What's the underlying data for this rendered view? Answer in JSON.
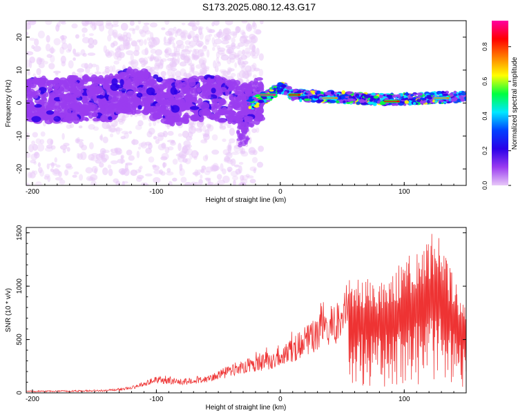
{
  "title": "S173.2025.080.12.43.G17",
  "chart_data": [
    {
      "type": "heatmap",
      "title": "S173.2025.080.12.43.G17",
      "xlabel": "Height of straight line (km)",
      "ylabel": "Frequency (Hz)",
      "xlim": [
        -205,
        150
      ],
      "ylim": [
        -25,
        25
      ],
      "xticks": [
        "-200",
        "-100",
        "0",
        "100"
      ],
      "yticks": [
        "20",
        "10",
        "0",
        "-10",
        "-20"
      ],
      "colorbar": {
        "label": "Normalized spectral amplitude",
        "range": [
          0,
          0.95
        ],
        "ticks": [
          "0.0",
          "0.2",
          "0.4",
          "0.6",
          "0.8"
        ],
        "colors": [
          "#e8c8f8",
          "#9a3cf0",
          "#2a00e8",
          "#0040ff",
          "#00e8ff",
          "#00ff40",
          "#ffff00",
          "#ff8000",
          "#ff0000",
          "#ff00a0"
        ]
      },
      "ridge": [
        {
          "x": -200,
          "y": 1
        },
        {
          "x": -180,
          "y": 0.5
        },
        {
          "x": -160,
          "y": 1.5
        },
        {
          "x": -140,
          "y": 1
        },
        {
          "x": -125,
          "y": 4
        },
        {
          "x": -110,
          "y": 3
        },
        {
          "x": -95,
          "y": 1
        },
        {
          "x": -80,
          "y": 0
        },
        {
          "x": -60,
          "y": 2
        },
        {
          "x": -45,
          "y": 1
        },
        {
          "x": -30,
          "y": -1
        },
        {
          "x": -20,
          "y": 0.5
        },
        {
          "x": -10,
          "y": 2
        },
        {
          "x": 0,
          "y": 5
        },
        {
          "x": 10,
          "y": 2.5
        },
        {
          "x": 30,
          "y": 2
        },
        {
          "x": 60,
          "y": 1.5
        },
        {
          "x": 90,
          "y": 1
        },
        {
          "x": 120,
          "y": 1.5
        },
        {
          "x": 150,
          "y": 2
        }
      ],
      "strong_segments": [
        {
          "x0": -15,
          "x1": -5,
          "y": 2.5,
          "amp": 0.9
        },
        {
          "x0": 8,
          "x1": 15,
          "y": 2.5,
          "amp": 0.85
        },
        {
          "x0": 35,
          "x1": 45,
          "y": 1.5,
          "amp": 0.7
        },
        {
          "x0": 85,
          "x1": 95,
          "y": 0.5,
          "amp": 0.8
        },
        {
          "x0": 125,
          "x1": 135,
          "y": 1.5,
          "amp": 0.75
        }
      ]
    },
    {
      "type": "line",
      "xlabel": "Height of straight line (km)",
      "ylabel": "SNR (10 * v/v)",
      "xlim": [
        -205,
        150
      ],
      "ylim": [
        0,
        1550
      ],
      "xticks": [
        "-200",
        "-100",
        "0",
        "100"
      ],
      "yticks": [
        "0",
        "500",
        "1000",
        "1500"
      ],
      "color": "#ee3333",
      "envelope": [
        {
          "x": -205,
          "y": 20
        },
        {
          "x": -180,
          "y": 22
        },
        {
          "x": -140,
          "y": 30
        },
        {
          "x": -120,
          "y": 60
        },
        {
          "x": -100,
          "y": 160
        },
        {
          "x": -80,
          "y": 130
        },
        {
          "x": -60,
          "y": 170
        },
        {
          "x": -40,
          "y": 260
        },
        {
          "x": -20,
          "y": 360
        },
        {
          "x": 0,
          "y": 430
        },
        {
          "x": 20,
          "y": 620
        },
        {
          "x": 40,
          "y": 820
        },
        {
          "x": 50,
          "y": 860
        },
        {
          "x": 55,
          "y": 1130
        },
        {
          "x": 80,
          "y": 1050
        },
        {
          "x": 100,
          "y": 1250
        },
        {
          "x": 125,
          "y": 1540
        },
        {
          "x": 150,
          "y": 820
        }
      ]
    }
  ]
}
